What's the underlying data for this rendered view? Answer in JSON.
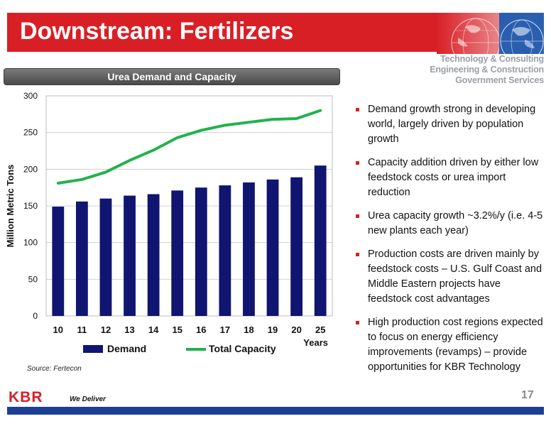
{
  "slide": {
    "title": "Downstream: Fertilizers",
    "tagline": [
      "Technology & Consulting",
      "Engineering & Construction",
      "Government Services"
    ],
    "chart_banner": "Urea Demand and Capacity",
    "bullets": [
      "Demand growth strong in developing world, largely driven by population growth",
      "Capacity addition driven by either low feedstock costs or urea import reduction",
      "Urea capacity growth ~3.2%/y (i.e. 4-5 new plants each year)",
      "Production costs are driven mainly by feedstock costs – U.S. Gulf Coast and Middle Eastern projects have feedstock cost advantages",
      "High production cost regions expected to focus on energy efficiency improvements (revamps) – provide opportunities for KBR Technology"
    ],
    "source": "Source: Fertecon",
    "page_number": "17",
    "logo_text": "KBR",
    "slogan": "We Deliver"
  },
  "colors": {
    "header_red": "#d91f26",
    "bar_navy": "#0f1570",
    "line_green": "#22b24c",
    "footer_blue": "#1c3f95"
  },
  "chart_data": {
    "type": "bar",
    "title": "",
    "xlabel": "Years",
    "ylabel": "Million Metric Tons",
    "categories": [
      "10",
      "11",
      "12",
      "13",
      "14",
      "15",
      "16",
      "17",
      "18",
      "19",
      "20",
      "25"
    ],
    "ylim": [
      0,
      300
    ],
    "yticks": [
      0,
      50,
      100,
      150,
      200,
      250,
      300
    ],
    "grid": true,
    "legend_position": "bottom",
    "series": [
      {
        "name": "Demand",
        "kind": "bar",
        "values": [
          149,
          156,
          160,
          164,
          166,
          171,
          175,
          178,
          182,
          186,
          189,
          205
        ]
      },
      {
        "name": "Total Capacity",
        "kind": "line",
        "values": [
          181,
          186,
          196,
          212,
          226,
          243,
          253,
          260,
          264,
          268,
          269,
          280
        ]
      }
    ]
  }
}
